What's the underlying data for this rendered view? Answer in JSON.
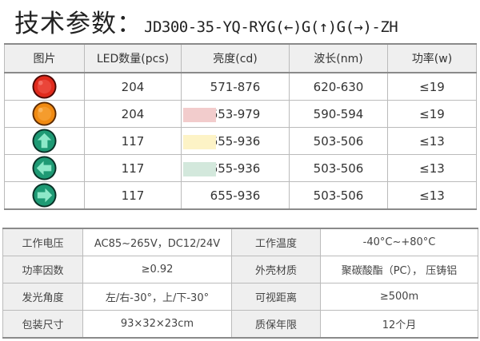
{
  "title": {
    "prefix": "技术参数：",
    "model": "JD300-35-YQ-RYG(←)G(↑)G(→)-ZH"
  },
  "spec_table": {
    "headers": [
      "图片",
      "LED数量(pcs)",
      "亮度(cd)",
      "波长(nm)",
      "功率(w)"
    ],
    "rows": [
      {
        "lamp": "red-full-ball-icon",
        "led_count": "204",
        "brightness": "571-876",
        "wavelength": "620-630",
        "power": "≤19",
        "swatch": ""
      },
      {
        "lamp": "yellow-full-ball-icon",
        "led_count": "204",
        "brightness": "653-979",
        "wavelength": "590-594",
        "power": "≤19",
        "swatch": "#f2cccc"
      },
      {
        "lamp": "green-up-arrow-icon",
        "led_count": "117",
        "brightness": "655-936",
        "wavelength": "503-506",
        "power": "≤13",
        "swatch": "#fdf3c6"
      },
      {
        "lamp": "green-left-arrow-icon",
        "led_count": "117",
        "brightness": "655-936",
        "wavelength": "503-506",
        "power": "≤13",
        "swatch": "#d3e8dc"
      },
      {
        "lamp": "green-right-arrow-icon",
        "led_count": "117",
        "brightness": "655-936",
        "wavelength": "503-506",
        "power": "≤13",
        "swatch": ""
      }
    ]
  },
  "info_table": {
    "rows": [
      {
        "label1": "工作电压",
        "value1": "AC85~265V，DC12/24V",
        "label2": "工作温度",
        "value2": "-40°C~+80°C"
      },
      {
        "label1": "功率因数",
        "value1": "≥0.92",
        "label2": "外壳材质",
        "value2": "聚碳酸酯（PC）， 压铸铝"
      },
      {
        "label1": "发光角度",
        "value1": "左/右-30°，上/下-30°",
        "label2": "可视距离",
        "value2": "≥500m"
      },
      {
        "label1": "包装尺寸",
        "value1": "93×32×23cm",
        "label2": "质保年限",
        "value2": "12个月"
      }
    ]
  },
  "colors": {
    "red_lamp": "#e02a1c",
    "yellow_lamp": "#f08a12",
    "green_lamp": "#1e9a74",
    "header_bg": "#efefef",
    "border_dark": "#8a8a8a"
  }
}
